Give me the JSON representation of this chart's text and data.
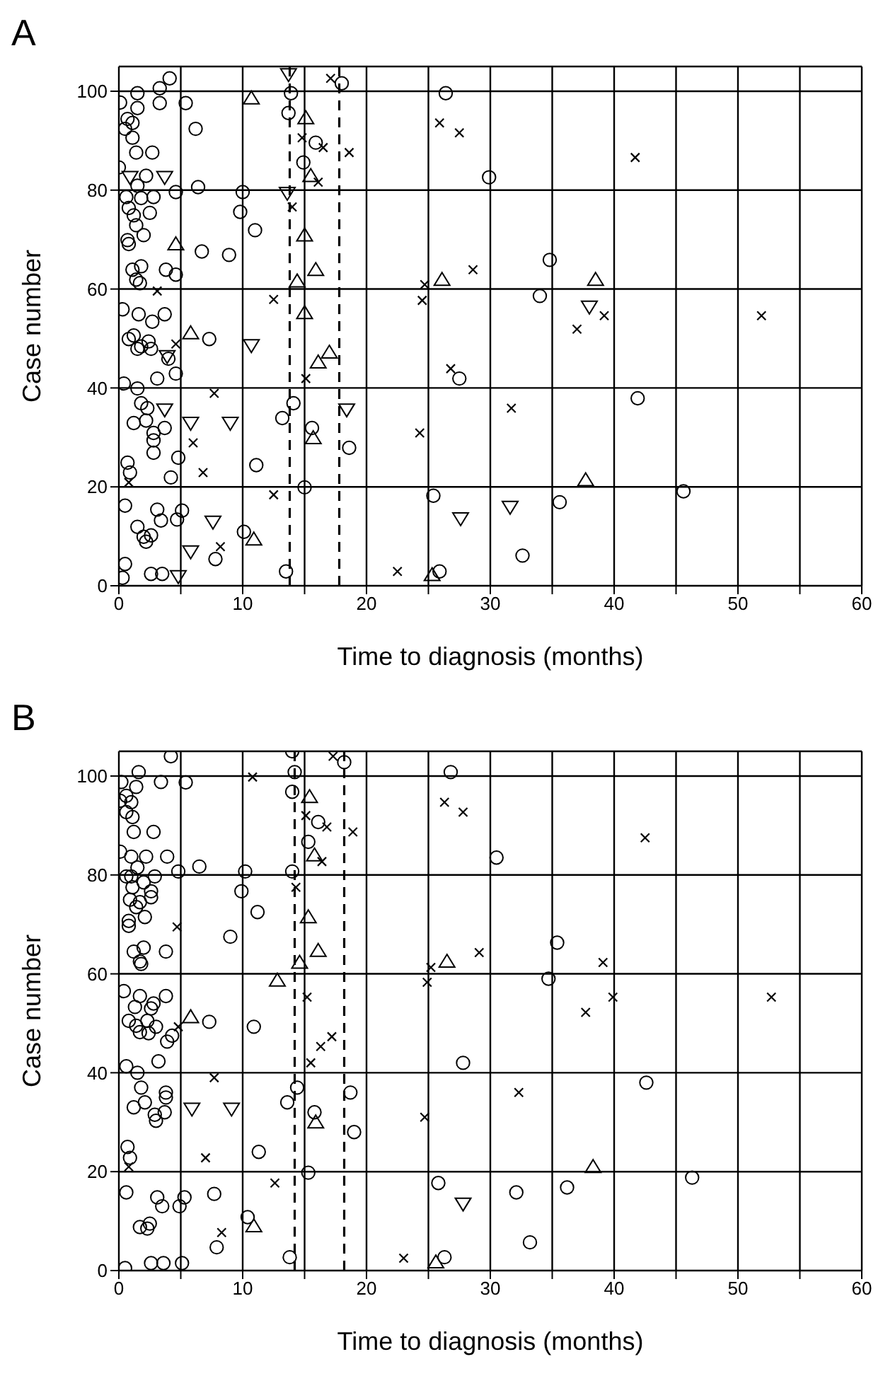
{
  "chart_data": [
    {
      "type": "scatter",
      "title": "A",
      "xlabel": "Time to diagnosis (months)",
      "ylabel": "Case number",
      "xlim": [
        0,
        60
      ],
      "xticks": [
        0,
        {
          "value": 5,
          "label": null
        },
        10,
        {
          "value": 15,
          "label": null
        },
        20,
        {
          "value": 25,
          "label": null
        },
        30,
        {
          "value": 35,
          "label": null
        },
        40,
        {
          "value": 45,
          "label": null
        },
        50,
        {
          "value": 55,
          "label": null
        },
        60
      ],
      "ylim": [
        0,
        105
      ],
      "yticks": [
        0,
        20,
        40,
        60,
        80,
        100
      ],
      "grid": true,
      "ref_lines": [
        {
          "axis": "x",
          "value": 13.8,
          "color": "#000000",
          "line_style": "dashed"
        },
        {
          "axis": "x",
          "value": 17.8,
          "color": "#000000",
          "line_style": "dashed"
        }
      ],
      "series": [
        {
          "color": "#000000",
          "marker": "circle",
          "x": [
            4.1,
            1.5,
            3.3,
            0.1,
            3.3,
            1.5,
            5.4,
            0.7,
            1.1,
            0.5,
            6.2,
            1.1,
            1.4,
            2.7,
            0.0,
            2.2,
            1.5,
            4.6,
            6.4,
            0.6,
            1.8,
            2.8,
            0.8,
            2.5,
            1.2,
            1.4,
            0.7,
            0.8,
            2.0,
            1.1,
            1.8,
            3.8,
            4.6,
            1.4,
            1.7,
            6.7,
            8.9,
            10.0,
            9.8,
            11.0,
            0.3,
            1.6,
            2.7,
            3.7,
            0.8,
            1.2,
            1.8,
            2.4,
            1.5,
            2.6,
            4.0,
            7.3,
            4.6,
            3.1,
            0.4,
            1.5,
            1.8,
            2.3,
            1.2,
            2.2,
            2.8,
            3.7,
            2.8,
            2.8,
            4.8,
            0.7,
            0.9,
            4.2,
            11.1,
            0.5,
            3.1,
            3.4,
            5.1,
            4.7,
            1.5,
            2.0,
            2.6,
            2.2,
            7.8,
            10.1,
            0.5,
            0.3,
            2.6,
            3.5,
            13.9,
            13.7,
            18.0,
            15.9,
            14.9,
            14.1,
            13.2,
            15.6,
            18.6,
            15.0,
            13.5,
            25.9,
            25.4,
            26.4,
            27.5,
            29.9,
            34.8,
            34.0,
            41.9,
            45.6,
            35.6,
            32.6
          ],
          "values": [
            102.6,
            99.6,
            100.6,
            97.7,
            97.6,
            96.6,
            97.6,
            94.4,
            93.6,
            92.4,
            92.4,
            90.6,
            87.6,
            87.6,
            84.6,
            82.9,
            80.9,
            79.6,
            80.6,
            78.6,
            78.4,
            78.6,
            76.4,
            75.4,
            74.9,
            72.9,
            69.9,
            69.1,
            70.9,
            63.9,
            64.6,
            63.9,
            62.9,
            61.9,
            61.2,
            67.6,
            66.9,
            79.6,
            75.6,
            71.9,
            55.9,
            54.9,
            53.4,
            54.9,
            49.9,
            50.6,
            48.4,
            49.4,
            47.9,
            47.9,
            45.9,
            49.9,
            42.9,
            41.9,
            40.9,
            39.9,
            36.9,
            35.9,
            32.9,
            33.4,
            30.9,
            31.9,
            29.4,
            26.9,
            25.9,
            24.9,
            22.9,
            21.9,
            24.4,
            16.2,
            15.4,
            13.2,
            15.2,
            13.4,
            11.9,
            9.9,
            10.2,
            8.9,
            5.4,
            10.9,
            4.4,
            1.6,
            2.4,
            2.4,
            99.6,
            95.6,
            101.6,
            89.6,
            85.6,
            36.9,
            33.9,
            31.9,
            27.9,
            19.9,
            2.9,
            2.9,
            18.2,
            99.6,
            41.9,
            82.6,
            65.9,
            58.6,
            37.9,
            19.1,
            16.9,
            6.1
          ]
        },
        {
          "color": "#000000",
          "marker": "cross",
          "x": [
            3.1,
            4.6,
            7.7,
            6.0,
            6.8,
            0.8,
            8.2,
            12.5,
            12.5,
            17.1,
            14.8,
            16.5,
            18.6,
            16.1,
            14.0,
            15.1,
            22.5,
            24.3,
            25.9,
            27.5,
            24.7,
            24.5,
            26.8,
            41.7,
            28.6,
            39.2,
            37.0,
            51.9,
            31.7
          ],
          "values": [
            59.6,
            48.9,
            38.9,
            28.9,
            22.9,
            20.9,
            7.9,
            57.9,
            18.4,
            102.6,
            90.6,
            88.6,
            87.6,
            81.6,
            76.6,
            41.9,
            2.9,
            30.9,
            93.6,
            91.6,
            60.9,
            57.7,
            43.9,
            86.6,
            63.9,
            54.6,
            51.9,
            54.6,
            35.9
          ]
        },
        {
          "color": "#000000",
          "marker": "triangle",
          "x": [
            10.7,
            4.6,
            5.8,
            10.9,
            15.1,
            15.5,
            15.0,
            15.9,
            14.4,
            15.0,
            16.1,
            17.0,
            15.7,
            25.3,
            26.1,
            38.5,
            37.7
          ],
          "values": [
            98.6,
            69.1,
            51.1,
            9.4,
            94.6,
            82.9,
            70.9,
            63.9,
            61.6,
            55.2,
            45.2,
            47.2,
            29.9,
            2.2,
            61.9,
            61.9,
            21.4
          ]
        },
        {
          "color": "#000000",
          "marker": "triangle-down",
          "x": [
            0.9,
            3.7,
            3.9,
            3.7,
            5.8,
            9.0,
            7.6,
            5.8,
            4.8,
            10.7,
            13.7,
            13.6,
            18.4,
            27.6,
            38.0,
            31.6
          ],
          "values": [
            82.6,
            82.6,
            46.4,
            35.6,
            32.9,
            32.9,
            12.9,
            6.9,
            1.9,
            48.6,
            103.4,
            79.4,
            35.6,
            13.6,
            56.4,
            15.9
          ]
        }
      ]
    },
    {
      "type": "scatter",
      "title": "B",
      "xlabel": "Time to diagnosis (months)",
      "ylabel": "Case number",
      "xlim": [
        0,
        60
      ],
      "xticks": [
        0,
        {
          "value": 5,
          "label": null
        },
        10,
        {
          "value": 15,
          "label": null
        },
        20,
        {
          "value": 25,
          "label": null
        },
        30,
        {
          "value": 35,
          "label": null
        },
        40,
        {
          "value": 45,
          "label": null
        },
        50,
        {
          "value": 55,
          "label": null
        },
        60
      ],
      "ylim": [
        0,
        105
      ],
      "yticks": [
        0,
        20,
        40,
        60,
        80,
        100
      ],
      "grid": true,
      "ref_lines": [
        {
          "axis": "x",
          "value": 14.2,
          "color": "#000000",
          "line_style": "dashed"
        },
        {
          "axis": "x",
          "value": 18.2,
          "color": "#000000",
          "line_style": "dashed"
        }
      ],
      "series": [
        {
          "color": "#000000",
          "marker": "circle",
          "x": [
            4.2,
            1.6,
            3.4,
            0.2,
            5.4,
            1.4,
            0.6,
            0.1,
            1.0,
            0.6,
            1.1,
            1.2,
            2.8,
            0.1,
            1.0,
            2.2,
            3.9,
            1.5,
            0.6,
            1.0,
            2.9,
            4.8,
            6.5,
            2.0,
            1.1,
            2.6,
            2.6,
            0.9,
            1.7,
            1.4,
            2.1,
            0.8,
            0.8,
            10.2,
            9.9,
            11.2,
            9.0,
            1.2,
            2.0,
            1.7,
            1.8,
            3.8,
            0.4,
            1.7,
            3.8,
            1.3,
            2.8,
            2.6,
            0.8,
            1.4,
            1.7,
            2.3,
            3.0,
            2.4,
            4.3,
            3.9,
            3.2,
            7.3,
            10.9,
            0.6,
            1.5,
            1.8,
            2.1,
            1.2,
            3.8,
            3.8,
            2.9,
            3.0,
            3.7,
            0.7,
            0.9,
            11.3,
            0.6,
            3.1,
            3.5,
            5.3,
            4.9,
            7.7,
            1.7,
            2.5,
            2.3,
            7.9,
            10.4,
            0.5,
            2.6,
            3.6,
            5.1,
            14.0,
            14.2,
            14.0,
            18.2,
            16.1,
            15.3,
            14.0,
            14.4,
            13.6,
            15.8,
            18.7,
            19.0,
            15.3,
            13.8,
            26.3,
            25.8,
            26.8,
            27.8,
            30.5,
            35.4,
            34.7,
            42.6,
            46.3,
            36.2,
            32.1,
            33.2
          ],
          "values": [
            104,
            100.8,
            98.8,
            98.8,
            98.7,
            97.8,
            96,
            95,
            94.7,
            92.7,
            91.7,
            88.7,
            88.7,
            84.7,
            83.7,
            83.7,
            83.7,
            81.5,
            79.7,
            79.7,
            79.7,
            80.7,
            81.7,
            78.5,
            77.5,
            76.7,
            75.5,
            75,
            74.5,
            73.5,
            71.5,
            70.7,
            69.7,
            80.7,
            76.7,
            72.5,
            67.5,
            64.5,
            65.3,
            62.5,
            62,
            64.5,
            56.5,
            55.5,
            55.5,
            53.3,
            54,
            53,
            50.5,
            49.5,
            48.2,
            50.5,
            49.3,
            48,
            47.5,
            46.3,
            42.3,
            50.3,
            49.3,
            41.3,
            40,
            37,
            34,
            33,
            36,
            35,
            31.5,
            30.3,
            32,
            25,
            22.8,
            24,
            15.8,
            14.8,
            13,
            14.8,
            13,
            15.5,
            8.8,
            9.5,
            8.5,
            4.7,
            10.8,
            0.5,
            1.5,
            1.5,
            1.5,
            105,
            100.8,
            96.8,
            102.8,
            90.7,
            86.7,
            80.7,
            37,
            34,
            32,
            36,
            28,
            19.8,
            2.7,
            2.7,
            17.7,
            100.8,
            42,
            83.5,
            66.3,
            59,
            38,
            18.8,
            16.8,
            15.8,
            5.7
          ]
        },
        {
          "color": "#000000",
          "marker": "cross",
          "x": [
            10.8,
            4.7,
            4.8,
            7.7,
            7.0,
            0.8,
            12.6,
            8.3,
            17.3,
            15.1,
            16.8,
            18.9,
            16.4,
            14.3,
            15.2,
            17.2,
            16.3,
            15.5,
            23.0,
            24.7,
            26.3,
            27.8,
            25.2,
            24.9,
            42.5,
            29.1,
            39.1,
            39.9,
            37.7,
            52.7,
            32.3
          ],
          "values": [
            99.8,
            69.5,
            49.3,
            39,
            22.8,
            21,
            17.7,
            7.7,
            104,
            92,
            89.7,
            88.7,
            82.7,
            77.5,
            55.3,
            47.3,
            45.3,
            42,
            2.5,
            31,
            94.7,
            92.7,
            61.3,
            58.3,
            87.5,
            64.3,
            62.3,
            55.3,
            52.2,
            55.3,
            36
          ]
        },
        {
          "color": "#000000",
          "marker": "triangle",
          "x": [
            5.8,
            12.8,
            10.9,
            15.4,
            15.8,
            15.3,
            16.1,
            14.6,
            15.9,
            25.6,
            26.5,
            38.3
          ],
          "values": [
            51.3,
            58.7,
            9,
            95.8,
            84,
            71.5,
            64.7,
            62.3,
            30,
            1.7,
            62.5,
            21
          ]
        },
        {
          "color": "#000000",
          "marker": "triangle-down",
          "x": [
            5.9,
            9.1,
            27.8
          ],
          "values": [
            32.7,
            32.7,
            13.5
          ]
        }
      ]
    }
  ]
}
